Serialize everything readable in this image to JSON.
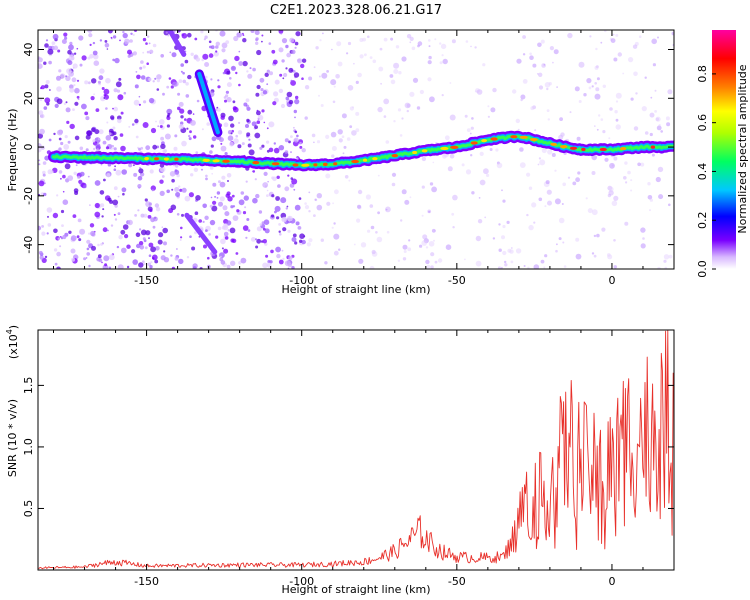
{
  "title": "C2E1.2023.328.06.21.G17",
  "chart_data": [
    {
      "type": "heatmap",
      "xlabel": "Height of straight line (km)",
      "ylabel": "Frequency (Hz)",
      "xlim": [
        -185,
        20
      ],
      "ylim": [
        -50,
        48
      ],
      "xticks": [
        -150,
        -100,
        -50,
        0
      ],
      "yticks": [
        -40,
        -20,
        0,
        20,
        40
      ],
      "colorbar": {
        "label": "Normalized spectral amplitude",
        "range": [
          0,
          0.98
        ],
        "ticks": [
          0.0,
          0.2,
          0.4,
          0.6,
          0.8
        ],
        "colors": [
          "#ffffff",
          "#7a00ff",
          "#0000ff",
          "#00c8ff",
          "#00ff60",
          "#b0ff00",
          "#ffff00",
          "#ff8000",
          "#ff0000",
          "#ff00a0"
        ]
      },
      "ridge": {
        "x": [
          -180,
          -160,
          -140,
          -120,
          -100,
          -90,
          -80,
          -70,
          -60,
          -50,
          -40,
          -30,
          -25,
          -20,
          -15,
          -10,
          0,
          10,
          20
        ],
        "y": [
          -4,
          -4.5,
          -5,
          -6,
          -7.5,
          -7,
          -5.5,
          -3.5,
          -1.5,
          0,
          3,
          4.5,
          3,
          1.5,
          0,
          -1,
          -1,
          0,
          0
        ]
      },
      "streaks": [
        {
          "x": [
            -133,
            -127
          ],
          "y": [
            30,
            6
          ]
        },
        {
          "x": [
            -143,
            -138
          ],
          "y": [
            49,
            38
          ]
        },
        {
          "x": [
            -137,
            -128
          ],
          "y": [
            -28,
            -43
          ]
        }
      ]
    },
    {
      "type": "line",
      "xlabel": "Height of straight line (km)",
      "ylabel": "SNR (10 * v/v)",
      "scale_label": "(x10",
      "scale_exp": "4",
      "xlim": [
        -185,
        20
      ],
      "ylim": [
        0,
        1.95
      ],
      "xticks": [
        -150,
        -100,
        -50,
        0
      ],
      "yticks": [
        0.5,
        1.0,
        1.5
      ],
      "ytick_labels": [
        "0.5",
        "1.0",
        "1.5"
      ],
      "color": "#e8302a",
      "envelope": {
        "x": [
          -185,
          -170,
          -165,
          -160,
          -150,
          -120,
          -100,
          -90,
          -80,
          -75,
          -70,
          -65,
          -62,
          -58,
          -55,
          -50,
          -45,
          -40,
          -35,
          -32,
          -30,
          -28,
          -25,
          -22,
          -20,
          -18,
          -15,
          -12,
          -10,
          -8,
          -5,
          -2,
          0,
          3,
          5,
          8,
          10,
          13,
          15,
          18,
          20
        ],
        "y": [
          0.02,
          0.03,
          0.06,
          0.08,
          0.04,
          0.05,
          0.05,
          0.06,
          0.08,
          0.12,
          0.18,
          0.3,
          0.38,
          0.25,
          0.18,
          0.13,
          0.12,
          0.12,
          0.13,
          0.3,
          0.55,
          0.7,
          0.8,
          0.75,
          0.85,
          1.05,
          1.25,
          1.3,
          1.1,
          1.1,
          1.0,
          1.05,
          1.1,
          1.3,
          1.4,
          1.35,
          1.45,
          1.5,
          1.55,
          1.6,
          1.62
        ]
      }
    }
  ]
}
